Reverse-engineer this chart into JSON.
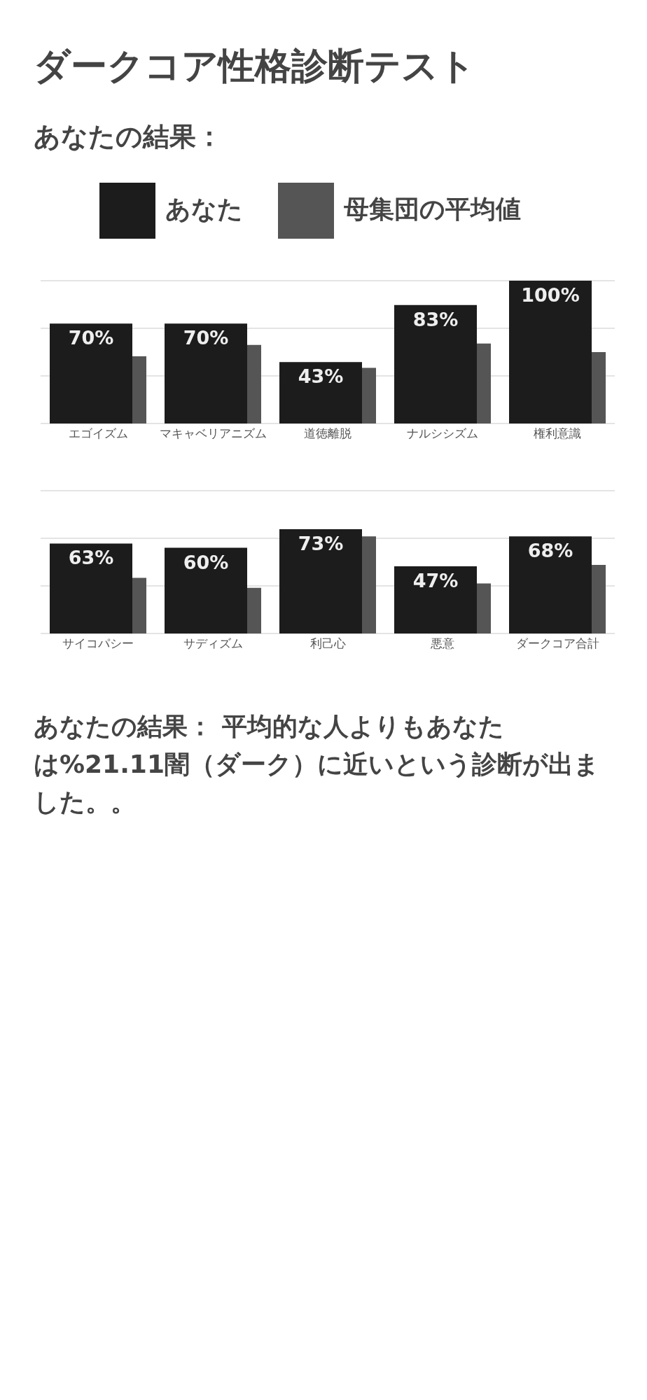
{
  "chart_data": [
    {
      "type": "bar",
      "title": "ダークコア性格診断テスト",
      "subtitle": "あなたの結果：",
      "legend": "top",
      "categories": [
        "エゴイズム",
        "マキャベリアニズム",
        "道徳離脱",
        "ナルシシズム",
        "権利意識"
      ],
      "series": [
        {
          "name": "あなた",
          "color": "#1c1c1c",
          "values": [
            70,
            70,
            43,
            83,
            100
          ],
          "value_labels": [
            "70%",
            "70%",
            "43%",
            "83%",
            "100%"
          ]
        },
        {
          "name": "母集団の平均値",
          "color": "#555555",
          "values": [
            47,
            55,
            39,
            56,
            50
          ]
        }
      ],
      "ylim": [
        0,
        100
      ],
      "yticks": [
        {
          "value": 0,
          "label": null
        },
        {
          "value": 33.3,
          "label": null
        },
        {
          "value": 66.7,
          "label": null
        },
        {
          "value": 100,
          "label": null
        }
      ],
      "grid": "y",
      "tick_labels": "x"
    },
    {
      "type": "bar",
      "categories": [
        "サイコパシー",
        "サディズム",
        "利己心",
        "悪意",
        "ダークコア合計"
      ],
      "series": [
        {
          "color": "#1c1c1c",
          "values": [
            63,
            60,
            73,
            47,
            68
          ],
          "value_labels": [
            "63%",
            "60%",
            "73%",
            "47%",
            "68%"
          ]
        },
        {
          "color": "#555555",
          "values": [
            39,
            32,
            68,
            35,
            48
          ]
        }
      ],
      "ylim": [
        0,
        100
      ],
      "yticks": [
        {
          "value": 0,
          "label": null
        },
        {
          "value": 33.3,
          "label": null
        },
        {
          "value": 66.7,
          "label": null
        },
        {
          "value": 100,
          "label": null
        }
      ],
      "grid": "y",
      "tick_labels": "x",
      "annotations": [
        "あなたの結果： 平均的な人よりもあなたは%21.11闇（ダーク）に近いという診断が出ました。。"
      ]
    }
  ]
}
